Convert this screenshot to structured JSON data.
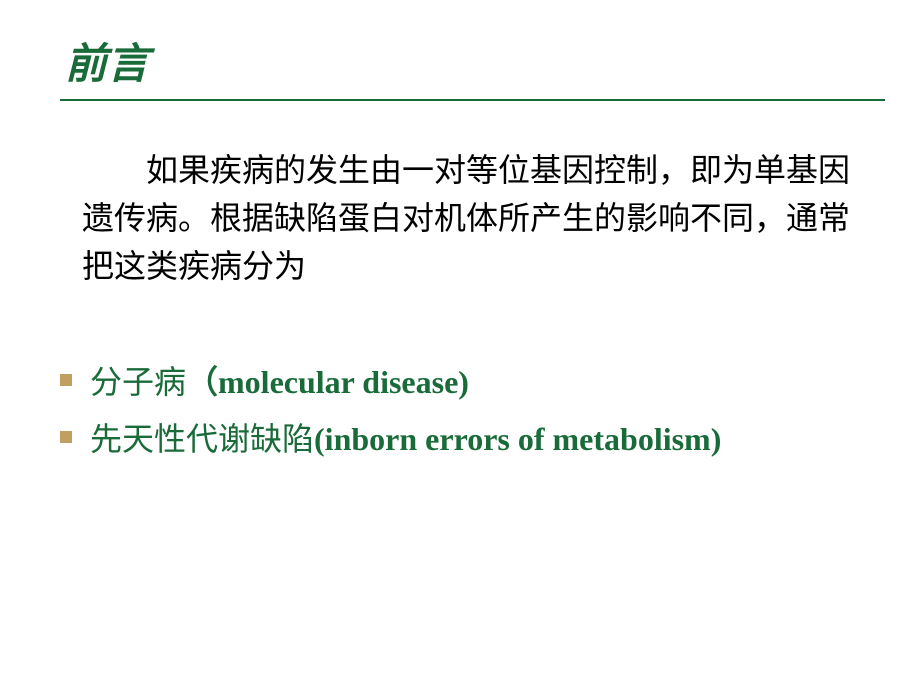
{
  "slide": {
    "title": "前言",
    "title_color": "#1a6b3a",
    "title_fontsize": 42,
    "underline_color": "#1a6b3a",
    "paragraph": "如果疾病的发生由一对等位基因控制，即为单基因遗传病。根据缺陷蛋白对机体所产生的影响不同，通常把这类疾病分为",
    "paragraph_color": "#000000",
    "paragraph_fontsize": 32,
    "bullets": [
      {
        "text_cn": "分子病",
        "text_latin": "（molecular disease)"
      },
      {
        "text_cn": " 先天性代谢缺陷",
        "text_latin": "(inborn errors of  metabolism)"
      }
    ],
    "bullet_color": "#1a6b3a",
    "bullet_marker_color": "#c0a060",
    "background_color": "#ffffff"
  }
}
